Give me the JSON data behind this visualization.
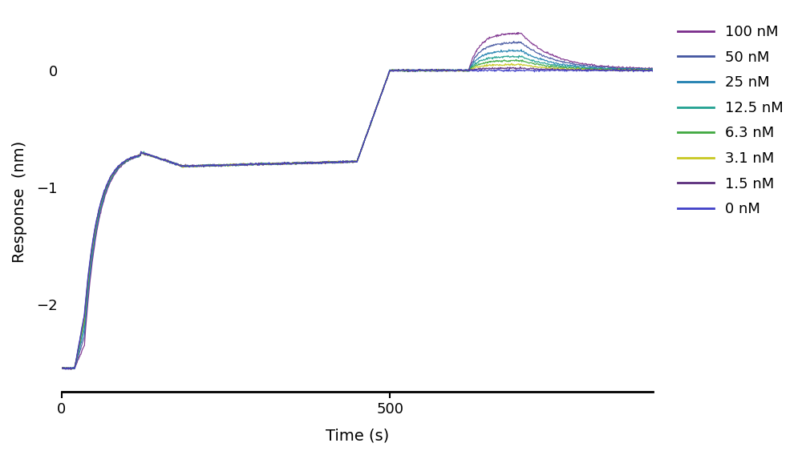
{
  "concentrations": [
    100,
    50,
    25,
    12.5,
    6.3,
    3.1,
    1.5,
    0
  ],
  "labels": [
    "100 nM",
    "50 nM",
    "25 nM",
    "12.5 nM",
    "6.3 nM",
    "3.1 nM",
    "1.5 nM",
    "0 nM"
  ],
  "colors": [
    "#7b2d8b",
    "#4355a0",
    "#2080b0",
    "#20a090",
    "#40a840",
    "#c8c820",
    "#5b2d7b",
    "#4040c8"
  ],
  "xlabel": "Time (s)",
  "ylabel": "Response  (nm)",
  "xlim": [
    0,
    900
  ],
  "ylim": [
    -2.75,
    0.5
  ],
  "yticks": [
    0,
    -1,
    -2
  ],
  "xticks": [
    0,
    500
  ],
  "figsize": [
    10.0,
    5.68
  ],
  "dpi": 100,
  "t0": 0,
  "t1": 20,
  "t2": 35,
  "t3": 120,
  "t4": 185,
  "t5": 450,
  "t6": 500,
  "t7": 620,
  "t8": 700,
  "t9": 900,
  "baseline_level": -2.55,
  "drop_levels": [
    -2.35,
    -2.28,
    -2.22,
    -2.17,
    -2.14,
    -2.12,
    -2.1,
    -2.08
  ],
  "spike_level": -0.7,
  "plateau_level": -0.82,
  "plateau_end_level": -0.78,
  "association_peaks": [
    0.32,
    0.24,
    0.17,
    0.12,
    0.085,
    0.05,
    0.02,
    0.0
  ],
  "dissoc_end_levels": [
    0.01,
    0.008,
    0.005,
    0.003,
    0.002,
    0.001,
    0.0,
    0.0
  ],
  "noise_amplitude": 0.004,
  "line_width": 0.9
}
